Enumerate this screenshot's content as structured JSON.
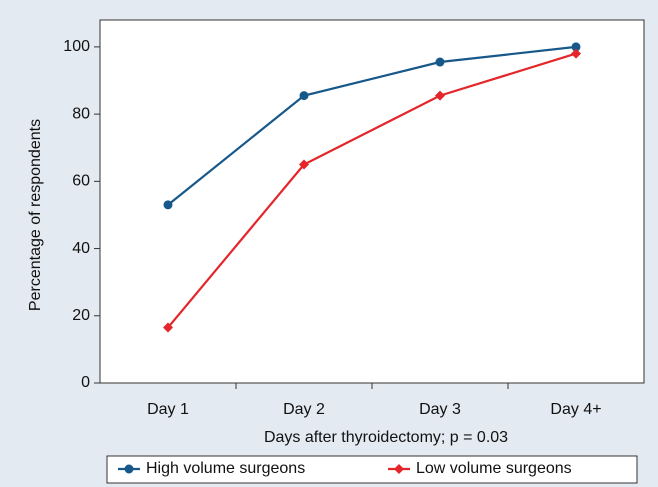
{
  "chart_data": {
    "type": "line",
    "x_label": "Days after thyroidectomy; p = 0.03",
    "y_label": "Percentage of respondents",
    "categories": [
      "Day 1",
      "Day 2",
      "Day 3",
      "Day 4+"
    ],
    "series": [
      {
        "name": "High volume surgeons",
        "color": "#17588a",
        "marker": "circle",
        "values": [
          53,
          85.5,
          95.5,
          100
        ]
      },
      {
        "name": "Low volume surgeons",
        "color": "#e4262b",
        "marker": "diamond",
        "values": [
          16.5,
          65,
          85.5,
          98
        ]
      }
    ],
    "ylim": [
      0,
      108
    ],
    "yticks": [
      0,
      20,
      40,
      60,
      80,
      100
    ],
    "grid": false,
    "legend": "bottom"
  }
}
